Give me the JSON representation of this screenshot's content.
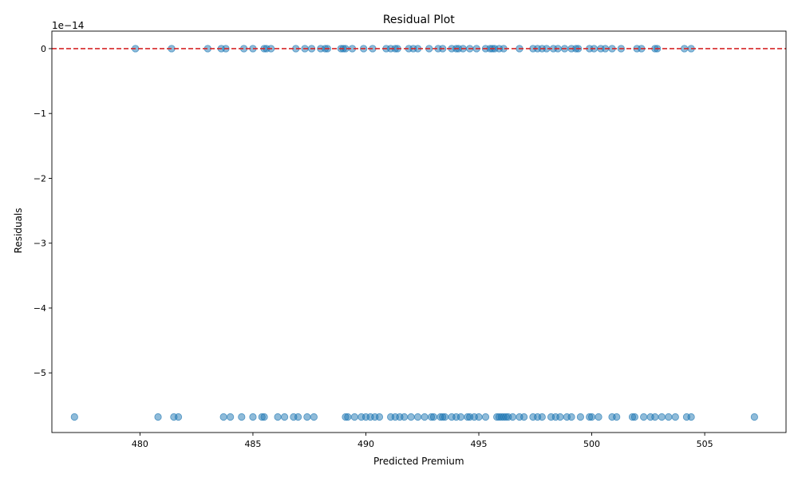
{
  "chart_data": {
    "type": "scatter",
    "title": "Residual Plot",
    "xlabel": "Predicted Premium",
    "ylabel": "Residuals",
    "y_scale_label": "1e−14",
    "xlim": [
      476.1,
      508.6
    ],
    "ylim": [
      -5.92,
      0.27
    ],
    "x_ticks": [
      480,
      485,
      490,
      495,
      500,
      505
    ],
    "x_tick_labels": [
      "480",
      "485",
      "490",
      "495",
      "500",
      "505"
    ],
    "y_ticks": [
      0,
      -1,
      -2,
      -3,
      -4,
      -5
    ],
    "y_tick_labels": [
      "0",
      "−1",
      "−2",
      "−3",
      "−4",
      "−5"
    ],
    "reference_line": {
      "y": 0,
      "color": "#d62728",
      "style": "dashed"
    },
    "marker_color": "#1f77b4",
    "marker_alpha": 0.5,
    "grid": false,
    "series": [
      {
        "y": 0,
        "x": [
          479.8,
          481.4,
          483.0,
          483.6,
          483.8,
          484.6,
          485.0,
          485.5,
          485.6,
          485.8,
          486.9,
          487.3,
          487.6,
          488.0,
          488.2,
          488.3,
          488.9,
          489.0,
          489.1,
          489.4,
          489.9,
          490.3,
          490.9,
          491.1,
          491.3,
          491.4,
          491.9,
          492.1,
          492.3,
          492.8,
          493.2,
          493.4,
          493.8,
          494.0,
          494.1,
          494.3,
          494.6,
          494.9,
          495.3,
          495.5,
          495.6,
          495.7,
          495.9,
          496.1,
          496.8,
          497.4,
          497.6,
          497.8,
          498.0,
          498.3,
          498.5,
          498.8,
          499.1,
          499.3,
          499.4,
          499.9,
          500.1,
          500.4,
          500.6,
          500.9,
          501.3,
          502.0,
          502.2,
          502.8,
          502.9,
          504.1,
          504.4
        ],
        "values": [
          0,
          0,
          0,
          0,
          0,
          0,
          0,
          0,
          0,
          0,
          0,
          0,
          0,
          0,
          0,
          0,
          0,
          0,
          0,
          0,
          0,
          0,
          0,
          0,
          0,
          0,
          0,
          0,
          0,
          0,
          0,
          0,
          0,
          0,
          0,
          0,
          0,
          0,
          0,
          0,
          0,
          0,
          0,
          0,
          0,
          0,
          0,
          0,
          0,
          0,
          0,
          0,
          0,
          0,
          0,
          0,
          0,
          0,
          0,
          0,
          0,
          0,
          0,
          0,
          0,
          0,
          0
        ]
      },
      {
        "y": -5.68,
        "x": [
          477.1,
          480.8,
          481.5,
          481.7,
          483.7,
          484.0,
          484.5,
          485.0,
          485.4,
          485.5,
          486.1,
          486.4,
          486.8,
          487.0,
          487.4,
          487.7,
          489.1,
          489.2,
          489.5,
          489.8,
          490.0,
          490.2,
          490.4,
          490.6,
          491.1,
          491.3,
          491.5,
          491.7,
          492.0,
          492.3,
          492.6,
          492.9,
          493.0,
          493.3,
          493.4,
          493.5,
          493.8,
          494.0,
          494.2,
          494.5,
          494.6,
          494.8,
          495.0,
          495.3,
          495.8,
          495.9,
          496.0,
          496.1,
          496.2,
          496.3,
          496.5,
          496.8,
          497.0,
          497.4,
          497.6,
          497.8,
          498.2,
          498.4,
          498.6,
          498.9,
          499.1,
          499.5,
          499.9,
          500.0,
          500.3,
          500.9,
          501.1,
          501.8,
          501.9,
          502.3,
          502.6,
          502.8,
          503.1,
          503.4,
          503.7,
          504.2,
          504.4,
          507.2
        ],
        "values": [
          -5.68,
          -5.68,
          -5.68,
          -5.68,
          -5.68,
          -5.68,
          -5.68,
          -5.68,
          -5.68,
          -5.68,
          -5.68,
          -5.68,
          -5.68,
          -5.68,
          -5.68,
          -5.68,
          -5.68,
          -5.68,
          -5.68,
          -5.68,
          -5.68,
          -5.68,
          -5.68,
          -5.68,
          -5.68,
          -5.68,
          -5.68,
          -5.68,
          -5.68,
          -5.68,
          -5.68,
          -5.68,
          -5.68,
          -5.68,
          -5.68,
          -5.68,
          -5.68,
          -5.68,
          -5.68,
          -5.68,
          -5.68,
          -5.68,
          -5.68,
          -5.68,
          -5.68,
          -5.68,
          -5.68,
          -5.68,
          -5.68,
          -5.68,
          -5.68,
          -5.68,
          -5.68,
          -5.68,
          -5.68,
          -5.68,
          -5.68,
          -5.68,
          -5.68,
          -5.68,
          -5.68,
          -5.68,
          -5.68,
          -5.68,
          -5.68,
          -5.68,
          -5.68,
          -5.68,
          -5.68,
          -5.68,
          -5.68,
          -5.68,
          -5.68,
          -5.68,
          -5.68,
          -5.68,
          -5.68,
          -5.68
        ]
      }
    ]
  }
}
